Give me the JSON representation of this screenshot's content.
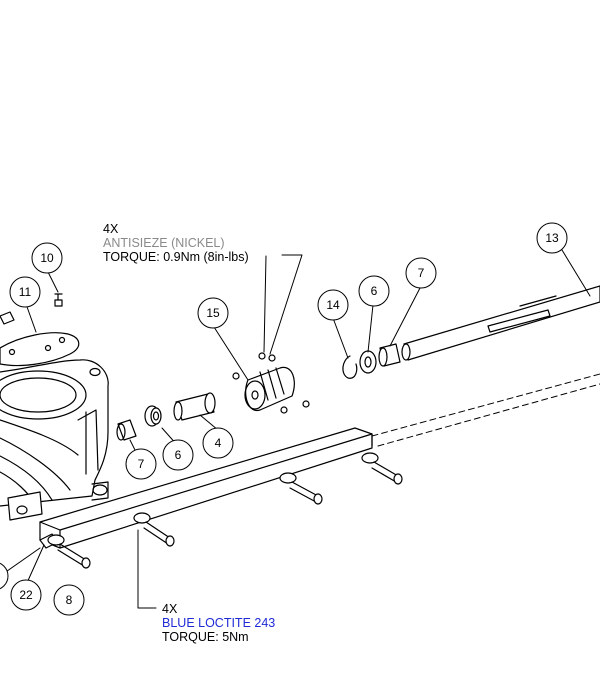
{
  "notes": {
    "coupling": {
      "qty": "4X",
      "compound": "ANTISIEZE (NICKEL)",
      "torque": "TORQUE: 0.9Nm (8in-lbs)"
    },
    "rail": {
      "qty": "4X",
      "compound": "BLUE LOCTITE 243",
      "torque": "TORQUE: 5Nm"
    }
  },
  "callouts": [
    "10",
    "11",
    "15",
    "14",
    "6",
    "7",
    "13",
    "7",
    "6",
    "4",
    "22",
    "8"
  ],
  "colors": {
    "line": "#000000",
    "grey_note": "#8a8a8a",
    "blue_note": "#1f2bd6"
  }
}
